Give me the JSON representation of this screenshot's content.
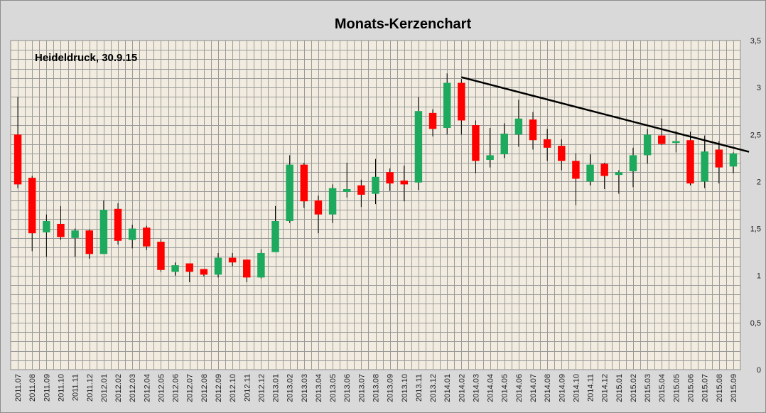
{
  "chart_data": {
    "type": "candlestick",
    "title": "Monats-Kerzenchart",
    "subtitle": "Heideldruck, 30.9.15",
    "ylim": [
      0,
      3.5
    ],
    "y_ticks": [
      "0",
      "0,5",
      "1",
      "1,5",
      "2",
      "2,5",
      "3",
      "3,5"
    ],
    "y_tick_values": [
      0,
      0.5,
      1,
      1.5,
      2,
      2.5,
      3,
      3.5
    ],
    "y_axis_position": "right",
    "grid": true,
    "colors": {
      "up": "#1daa5e",
      "down": "#ff0000",
      "background": "#f1ecdf",
      "grid": "#9a9a9a",
      "wick": "#000000",
      "trendline": "#000000"
    },
    "categories": [
      "2011.07",
      "2011.08",
      "2011.09",
      "2011.10",
      "2011.11",
      "2011.12",
      "2012.01",
      "2012.02",
      "2012.03",
      "2012.04",
      "2012.05",
      "2012.06",
      "2012.07",
      "2012.08",
      "2012.09",
      "2012.10",
      "2012.11",
      "2012.12",
      "2013.01",
      "2013.02",
      "2013.03",
      "2013.04",
      "2013.05",
      "2013.06",
      "2013.07",
      "2013.08",
      "2013.09",
      "2013.10",
      "2013.11",
      "2013.12",
      "2014.01",
      "2014.02",
      "2014.03",
      "2014.04",
      "2014.05",
      "2014.06",
      "2014.07",
      "2014.08",
      "2014.09",
      "2014.10",
      "2014.11",
      "2014.12",
      "2015.01",
      "2015.02",
      "2015.03",
      "2015.04",
      "2015.05",
      "2015.06",
      "2015.07",
      "2015.08",
      "2015.09"
    ],
    "candles": [
      {
        "open": 2.5,
        "high": 2.9,
        "low": 1.93,
        "close": 1.97
      },
      {
        "open": 2.04,
        "high": 2.06,
        "low": 1.26,
        "close": 1.45
      },
      {
        "open": 1.46,
        "high": 1.65,
        "low": 1.2,
        "close": 1.58
      },
      {
        "open": 1.55,
        "high": 1.74,
        "low": 1.38,
        "close": 1.41
      },
      {
        "open": 1.4,
        "high": 1.5,
        "low": 1.2,
        "close": 1.48
      },
      {
        "open": 1.48,
        "high": 1.49,
        "low": 1.18,
        "close": 1.23
      },
      {
        "open": 1.23,
        "high": 1.8,
        "low": 1.23,
        "close": 1.7
      },
      {
        "open": 1.71,
        "high": 1.77,
        "low": 1.33,
        "close": 1.37
      },
      {
        "open": 1.38,
        "high": 1.54,
        "low": 1.29,
        "close": 1.5
      },
      {
        "open": 1.51,
        "high": 1.53,
        "low": 1.27,
        "close": 1.31
      },
      {
        "open": 1.36,
        "high": 1.39,
        "low": 1.04,
        "close": 1.06
      },
      {
        "open": 1.04,
        "high": 1.14,
        "low": 1.0,
        "close": 1.11
      },
      {
        "open": 1.13,
        "high": 1.13,
        "low": 0.93,
        "close": 1.04
      },
      {
        "open": 1.07,
        "high": 1.07,
        "low": 0.99,
        "close": 1.01
      },
      {
        "open": 1.01,
        "high": 1.24,
        "low": 0.98,
        "close": 1.19
      },
      {
        "open": 1.19,
        "high": 1.24,
        "low": 1.1,
        "close": 1.14
      },
      {
        "open": 1.17,
        "high": 1.17,
        "low": 0.93,
        "close": 0.98
      },
      {
        "open": 0.98,
        "high": 1.28,
        "low": 0.97,
        "close": 1.24
      },
      {
        "open": 1.25,
        "high": 1.74,
        "low": 1.25,
        "close": 1.58
      },
      {
        "open": 1.58,
        "high": 2.28,
        "low": 1.56,
        "close": 2.18
      },
      {
        "open": 2.18,
        "high": 2.2,
        "low": 1.72,
        "close": 1.79
      },
      {
        "open": 1.8,
        "high": 1.85,
        "low": 1.45,
        "close": 1.65
      },
      {
        "open": 1.65,
        "high": 1.97,
        "low": 1.56,
        "close": 1.93
      },
      {
        "open": 1.89,
        "high": 2.2,
        "low": 1.83,
        "close": 1.92
      },
      {
        "open": 1.96,
        "high": 2.02,
        "low": 1.73,
        "close": 1.86
      },
      {
        "open": 1.87,
        "high": 2.24,
        "low": 1.76,
        "close": 2.05
      },
      {
        "open": 2.1,
        "high": 2.14,
        "low": 1.9,
        "close": 1.98
      },
      {
        "open": 2.01,
        "high": 2.17,
        "low": 1.79,
        "close": 1.97
      },
      {
        "open": 1.99,
        "high": 2.9,
        "low": 1.91,
        "close": 2.75
      },
      {
        "open": 2.73,
        "high": 2.77,
        "low": 2.48,
        "close": 2.56
      },
      {
        "open": 2.57,
        "high": 3.15,
        "low": 2.5,
        "close": 3.05
      },
      {
        "open": 3.05,
        "high": 3.09,
        "low": 2.5,
        "close": 2.65
      },
      {
        "open": 2.6,
        "high": 2.65,
        "low": 2.09,
        "close": 2.22
      },
      {
        "open": 2.23,
        "high": 2.57,
        "low": 2.15,
        "close": 2.28
      },
      {
        "open": 2.29,
        "high": 2.62,
        "low": 2.25,
        "close": 2.51
      },
      {
        "open": 2.5,
        "high": 2.87,
        "low": 2.37,
        "close": 2.67
      },
      {
        "open": 2.66,
        "high": 2.74,
        "low": 2.34,
        "close": 2.44
      },
      {
        "open": 2.45,
        "high": 2.56,
        "low": 2.22,
        "close": 2.36
      },
      {
        "open": 2.38,
        "high": 2.45,
        "low": 2.12,
        "close": 2.22
      },
      {
        "open": 2.22,
        "high": 2.3,
        "low": 1.75,
        "close": 2.03
      },
      {
        "open": 2.0,
        "high": 2.29,
        "low": 1.96,
        "close": 2.18
      },
      {
        "open": 2.19,
        "high": 2.2,
        "low": 1.92,
        "close": 2.06
      },
      {
        "open": 2.07,
        "high": 2.12,
        "low": 1.87,
        "close": 2.1
      },
      {
        "open": 2.11,
        "high": 2.36,
        "low": 1.94,
        "close": 2.28
      },
      {
        "open": 2.28,
        "high": 2.56,
        "low": 2.19,
        "close": 2.5
      },
      {
        "open": 2.49,
        "high": 2.67,
        "low": 2.39,
        "close": 2.4
      },
      {
        "open": 2.41,
        "high": 2.54,
        "low": 2.31,
        "close": 2.43
      },
      {
        "open": 2.44,
        "high": 2.53,
        "low": 1.96,
        "close": 1.98
      },
      {
        "open": 2.0,
        "high": 2.49,
        "low": 1.93,
        "close": 2.32
      },
      {
        "open": 2.34,
        "high": 2.43,
        "low": 1.98,
        "close": 2.15
      },
      {
        "open": 2.16,
        "high": 2.31,
        "low": 2.09,
        "close": 2.3
      }
    ],
    "trendline": {
      "from": {
        "x": "2014.02",
        "y": 3.11
      },
      "to": {
        "x": "2015.09",
        "y": 2.36
      }
    }
  }
}
